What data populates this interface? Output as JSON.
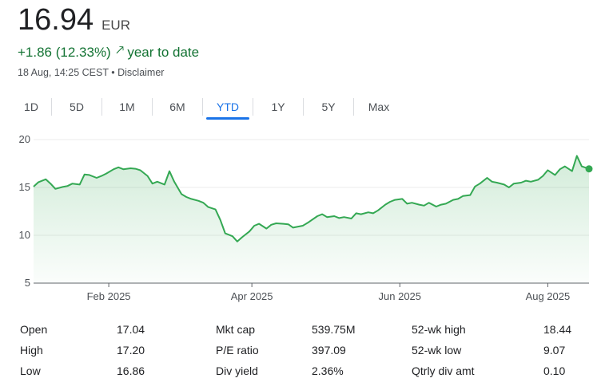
{
  "quote": {
    "price": "16.94",
    "currency": "EUR",
    "change": "+1.86 (12.33%)",
    "period_label": "year to date",
    "timestamp": "18 Aug, 14:25 CEST",
    "separator": "•",
    "disclaimer": "Disclaimer",
    "accent_color": "#137333"
  },
  "tabs": [
    {
      "label": "1D",
      "active": false
    },
    {
      "label": "5D",
      "active": false
    },
    {
      "label": "1M",
      "active": false
    },
    {
      "label": "6M",
      "active": false
    },
    {
      "label": "YTD",
      "active": true
    },
    {
      "label": "1Y",
      "active": false
    },
    {
      "label": "5Y",
      "active": false
    },
    {
      "label": "Max",
      "active": false
    }
  ],
  "chart_data": {
    "type": "area",
    "title": "",
    "xlabel": "",
    "ylabel": "",
    "ylim": [
      5,
      20
    ],
    "y_ticks": [
      "5",
      "10",
      "15",
      "20"
    ],
    "x_ticks": [
      {
        "label": "Feb 2025",
        "date": "2025-02-01"
      },
      {
        "label": "Apr 2025",
        "date": "2025-04-01"
      },
      {
        "label": "Jun 2025",
        "date": "2025-06-01"
      },
      {
        "label": "Aug 2025",
        "date": "2025-08-01"
      }
    ],
    "xlim": [
      "2025-01-01",
      "2025-08-18"
    ],
    "grid": true,
    "line_color": "#34a853",
    "series": [
      {
        "dates": [
          "2025-01-01",
          "2025-01-03",
          "2025-01-06",
          "2025-01-08",
          "2025-01-10",
          "2025-01-13",
          "2025-01-15",
          "2025-01-17",
          "2025-01-20",
          "2025-01-22",
          "2025-01-24",
          "2025-01-27",
          "2025-01-29",
          "2025-01-31",
          "2025-02-03",
          "2025-02-05",
          "2025-02-07",
          "2025-02-10",
          "2025-02-12",
          "2025-02-14",
          "2025-02-17",
          "2025-02-19",
          "2025-02-21",
          "2025-02-24",
          "2025-02-26",
          "2025-02-28",
          "2025-03-03",
          "2025-03-05",
          "2025-03-07",
          "2025-03-10",
          "2025-03-12",
          "2025-03-14",
          "2025-03-17",
          "2025-03-19",
          "2025-03-21",
          "2025-03-24",
          "2025-03-26",
          "2025-03-28",
          "2025-03-31",
          "2025-04-02",
          "2025-04-04",
          "2025-04-07",
          "2025-04-09",
          "2025-04-11",
          "2025-04-14",
          "2025-04-16",
          "2025-04-18",
          "2025-04-22",
          "2025-04-24",
          "2025-04-28",
          "2025-04-30",
          "2025-05-02",
          "2025-05-05",
          "2025-05-07",
          "2025-05-09",
          "2025-05-12",
          "2025-05-14",
          "2025-05-16",
          "2025-05-19",
          "2025-05-21",
          "2025-05-23",
          "2025-05-26",
          "2025-05-28",
          "2025-05-30",
          "2025-06-02",
          "2025-06-04",
          "2025-06-06",
          "2025-06-09",
          "2025-06-11",
          "2025-06-13",
          "2025-06-16",
          "2025-06-18",
          "2025-06-20",
          "2025-06-23",
          "2025-06-25",
          "2025-06-27",
          "2025-06-30",
          "2025-07-02",
          "2025-07-04",
          "2025-07-07",
          "2025-07-09",
          "2025-07-11",
          "2025-07-14",
          "2025-07-16",
          "2025-07-18",
          "2025-07-21",
          "2025-07-23",
          "2025-07-25",
          "2025-07-28",
          "2025-07-30",
          "2025-08-01",
          "2025-08-04",
          "2025-08-06",
          "2025-08-08",
          "2025-08-11",
          "2025-08-13",
          "2025-08-15",
          "2025-08-18"
        ],
        "values": [
          15.08,
          15.55,
          15.85,
          15.4,
          14.85,
          15.05,
          15.15,
          15.4,
          15.3,
          16.35,
          16.3,
          16.0,
          16.2,
          16.45,
          16.9,
          17.1,
          16.9,
          17.0,
          16.95,
          16.8,
          16.2,
          15.4,
          15.6,
          15.3,
          16.7,
          15.6,
          14.3,
          14.0,
          13.8,
          13.6,
          13.4,
          12.95,
          12.7,
          11.6,
          10.2,
          9.9,
          9.35,
          9.8,
          10.4,
          11.0,
          11.2,
          10.7,
          11.1,
          11.25,
          11.2,
          11.15,
          10.8,
          11.0,
          11.3,
          12.0,
          12.2,
          11.9,
          12.0,
          11.8,
          11.9,
          11.75,
          12.3,
          12.2,
          12.4,
          12.3,
          12.6,
          13.2,
          13.5,
          13.7,
          13.8,
          13.3,
          13.4,
          13.2,
          13.1,
          13.4,
          13.0,
          13.2,
          13.3,
          13.7,
          13.8,
          14.1,
          14.2,
          15.1,
          15.4,
          16.0,
          15.6,
          15.5,
          15.3,
          15.0,
          15.4,
          15.5,
          15.7,
          15.6,
          15.8,
          16.2,
          16.8,
          16.3,
          16.9,
          17.2,
          16.7,
          18.3,
          17.2,
          16.94
        ]
      }
    ]
  },
  "stats": {
    "col1": [
      {
        "label": "Open",
        "value": "17.04"
      },
      {
        "label": "High",
        "value": "17.20"
      },
      {
        "label": "Low",
        "value": "16.86"
      }
    ],
    "col2": [
      {
        "label": "Mkt cap",
        "value": "539.75M"
      },
      {
        "label": "P/E ratio",
        "value": "397.09"
      },
      {
        "label": "Div yield",
        "value": "2.36%"
      }
    ],
    "col3": [
      {
        "label": "52-wk high",
        "value": "18.44"
      },
      {
        "label": "52-wk low",
        "value": "9.07"
      },
      {
        "label": "Qtrly div amt",
        "value": "0.10"
      }
    ]
  }
}
